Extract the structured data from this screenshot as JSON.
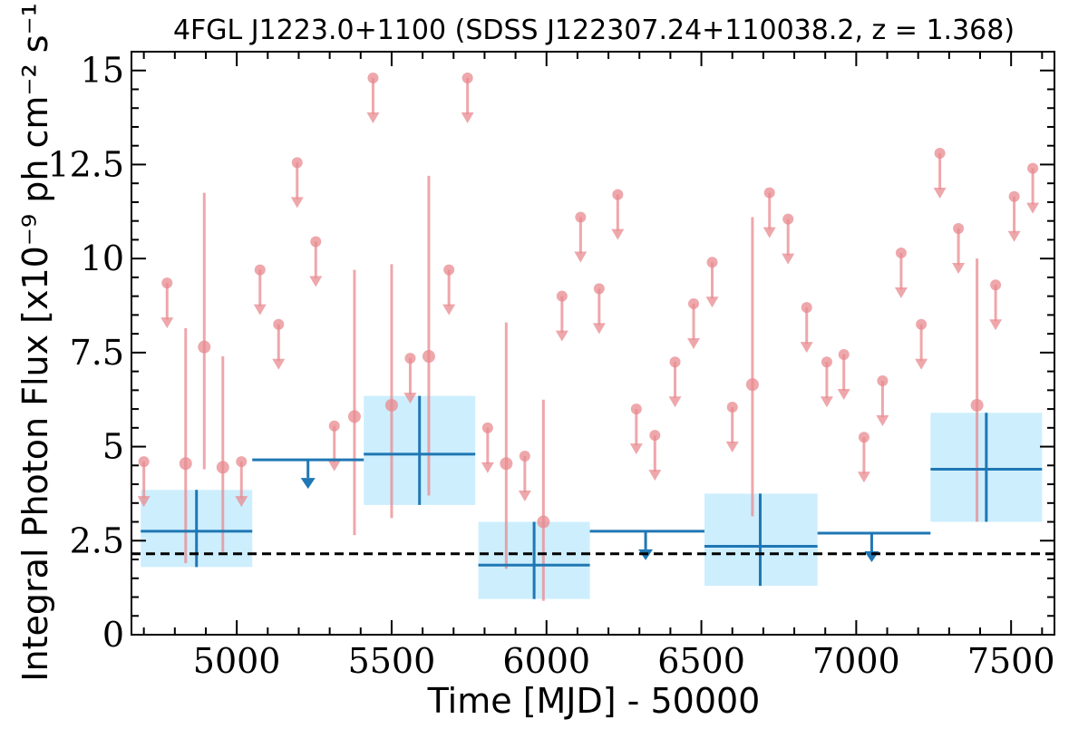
{
  "chart_data": {
    "type": "scatter",
    "title": "4FGL J1223.0+1100 (SDSS J122307.24+110038.2, z = 1.368)",
    "xlabel": "Time [MJD] - 50000",
    "ylabel": "Integral Photon Flux [x10⁻⁹ ph cm⁻² s⁻¹]",
    "xlim": [
      4660,
      7640
    ],
    "ylim": [
      0,
      15.5
    ],
    "x_ticks": [
      5000,
      5500,
      6000,
      6500,
      7000,
      7500
    ],
    "x_tick_labels": [
      "5000",
      "5500",
      "6000",
      "6500",
      "7000",
      "7500"
    ],
    "y_ticks": [
      0,
      2.5,
      5,
      7.5,
      10,
      12.5,
      15
    ],
    "y_tick_labels": [
      "0",
      "2.5",
      "5",
      "7.5",
      "10",
      "12.5",
      "15"
    ],
    "grid": false,
    "reference_line": {
      "y": 2.15,
      "style": "dashed",
      "color": "#000000"
    },
    "colors": {
      "short_bins": "#e88a8f",
      "long_bins": "#1f77b4",
      "error_box": "#cdeefd"
    },
    "short_bins_detections": [
      {
        "x": 4835,
        "y": 4.55,
        "yerr_low": 2.65,
        "yerr_high": 3.6
      },
      {
        "x": 4895,
        "y": 7.65,
        "yerr_low": 3.25,
        "yerr_high": 4.1
      },
      {
        "x": 4955,
        "y": 4.45,
        "yerr_low": 2.25,
        "yerr_high": 2.95
      },
      {
        "x": 5380,
        "y": 5.8,
        "yerr_low": 3.15,
        "yerr_high": 3.9
      },
      {
        "x": 5500,
        "y": 6.1,
        "yerr_low": 3.0,
        "yerr_high": 3.75
      },
      {
        "x": 5620,
        "y": 7.4,
        "yerr_low": 3.7,
        "yerr_high": 4.8
      },
      {
        "x": 5870,
        "y": 4.55,
        "yerr_low": 2.8,
        "yerr_high": 3.75
      },
      {
        "x": 5990,
        "y": 3.0,
        "yerr_low": 2.1,
        "yerr_high": 3.25
      },
      {
        "x": 6665,
        "y": 6.65,
        "yerr_low": 3.5,
        "yerr_high": 4.45
      },
      {
        "x": 7390,
        "y": 6.1,
        "yerr_low": 3.1,
        "yerr_high": 3.9
      }
    ],
    "short_bins_upper_limits": [
      {
        "x": 4700,
        "y": 4.6
      },
      {
        "x": 4775,
        "y": 9.35
      },
      {
        "x": 5015,
        "y": 4.6
      },
      {
        "x": 5075,
        "y": 9.7
      },
      {
        "x": 5135,
        "y": 8.25
      },
      {
        "x": 5195,
        "y": 12.55
      },
      {
        "x": 5255,
        "y": 10.45
      },
      {
        "x": 5315,
        "y": 5.55
      },
      {
        "x": 5440,
        "y": 14.8
      },
      {
        "x": 5560,
        "y": 7.35
      },
      {
        "x": 5685,
        "y": 9.7
      },
      {
        "x": 5745,
        "y": 14.8
      },
      {
        "x": 5810,
        "y": 5.5
      },
      {
        "x": 5930,
        "y": 4.75
      },
      {
        "x": 6050,
        "y": 9.0
      },
      {
        "x": 6110,
        "y": 11.1
      },
      {
        "x": 6170,
        "y": 9.2
      },
      {
        "x": 6230,
        "y": 11.7
      },
      {
        "x": 6290,
        "y": 6.0
      },
      {
        "x": 6350,
        "y": 5.3
      },
      {
        "x": 6415,
        "y": 7.25
      },
      {
        "x": 6475,
        "y": 8.8
      },
      {
        "x": 6535,
        "y": 9.9
      },
      {
        "x": 6600,
        "y": 6.05
      },
      {
        "x": 6720,
        "y": 11.75
      },
      {
        "x": 6780,
        "y": 11.05
      },
      {
        "x": 6840,
        "y": 8.7
      },
      {
        "x": 6905,
        "y": 7.25
      },
      {
        "x": 6960,
        "y": 7.45
      },
      {
        "x": 7025,
        "y": 5.25
      },
      {
        "x": 7085,
        "y": 6.75
      },
      {
        "x": 7145,
        "y": 10.15
      },
      {
        "x": 7210,
        "y": 8.25
      },
      {
        "x": 7270,
        "y": 12.8
      },
      {
        "x": 7330,
        "y": 10.8
      },
      {
        "x": 7450,
        "y": 9.3
      },
      {
        "x": 7510,
        "y": 11.65
      },
      {
        "x": 7570,
        "y": 12.4
      }
    ],
    "long_bins_detections": [
      {
        "x0": 4690,
        "x1": 5050,
        "xc": 4870,
        "y": 2.75,
        "y_low": 1.8,
        "y_high": 3.85
      },
      {
        "x0": 5410,
        "x1": 5770,
        "xc": 5590,
        "y": 4.8,
        "y_low": 3.45,
        "y_high": 6.35
      },
      {
        "x0": 5780,
        "x1": 6140,
        "xc": 5960,
        "y": 1.85,
        "y_low": 0.95,
        "y_high": 3.0
      },
      {
        "x0": 6510,
        "x1": 6875,
        "xc": 6690,
        "y": 2.35,
        "y_low": 1.3,
        "y_high": 3.75
      },
      {
        "x0": 7240,
        "x1": 7600,
        "xc": 7420,
        "y": 4.4,
        "y_low": 3.0,
        "y_high": 5.9
      }
    ],
    "long_bins_upper_limits": [
      {
        "x0": 5050,
        "x1": 5410,
        "xc": 5230,
        "y": 4.65
      },
      {
        "x0": 6140,
        "x1": 6510,
        "xc": 6320,
        "y": 2.75
      },
      {
        "x0": 6875,
        "x1": 7240,
        "xc": 7050,
        "y": 2.7
      }
    ]
  }
}
